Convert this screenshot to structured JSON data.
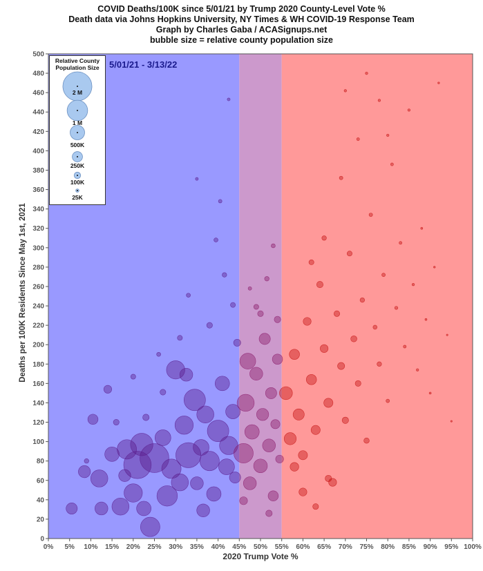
{
  "header": {
    "line1": "COVID Deaths/100K since 5/01/21 by Trump 2020 County-Level Vote %",
    "line2": "Death data via Johns Hopkins University, NY Times & WH COVID-19 Response Team",
    "line3": "Graph by Charles Gaba / ACASignups.net",
    "line4": "bubble size = relative county population size"
  },
  "date_range": "5/01/21 - 3/13/22",
  "legend": {
    "title_line1": "Relative County",
    "title_line2": "Population Size",
    "items": [
      {
        "label": "2 M",
        "population": 2000000
      },
      {
        "label": "1 M",
        "population": 1000000
      },
      {
        "label": "500K",
        "population": 500000
      },
      {
        "label": "250K",
        "population": 250000
      },
      {
        "label": "100K",
        "population": 100000
      },
      {
        "label": "25K",
        "population": 25000
      }
    ]
  },
  "colors": {
    "blue_zone": "#9999ff",
    "purple_zone": "#cc99cc",
    "red_zone": "#ff9999",
    "blue_bubble": "#5a1a8a",
    "purple_bubble": "#8a1a6a",
    "red_bubble": "#c41010",
    "legend_bubble": "#a9c9ef"
  },
  "chart_data": {
    "type": "scatter",
    "title": "COVID Deaths/100K since 5/01/21 by Trump 2020 County-Level Vote %",
    "xlabel": "2020 Trump Vote %",
    "ylabel": "Deaths per 100K Residents Since May 1st, 2021",
    "xlim": [
      0,
      100
    ],
    "ylim": [
      0,
      500
    ],
    "x_ticks": [
      "0%",
      "5%",
      "10%",
      "15%",
      "20%",
      "25%",
      "30%",
      "35%",
      "40%",
      "45%",
      "50%",
      "55%",
      "60%",
      "65%",
      "70%",
      "75%",
      "80%",
      "85%",
      "90%",
      "95%",
      "100%"
    ],
    "y_ticks": [
      0,
      20,
      40,
      60,
      80,
      100,
      120,
      140,
      160,
      180,
      200,
      220,
      240,
      260,
      280,
      300,
      320,
      340,
      360,
      380,
      400,
      420,
      440,
      460,
      480,
      500
    ],
    "grid": false,
    "legend_position": "top-left",
    "bands": [
      {
        "from": 0,
        "to": 45,
        "color": "#9999ff"
      },
      {
        "from": 45,
        "to": 55,
        "color": "#cc99cc"
      },
      {
        "from": 55,
        "to": 100,
        "color": "#ff9999"
      }
    ],
    "series": [
      {
        "color": "#5a1a8a",
        "points": [
          {
            "x": 5.5,
            "y": 31,
            "pop": 300000
          },
          {
            "x": 8.5,
            "y": 69,
            "pop": 350000
          },
          {
            "x": 10.5,
            "y": 123,
            "pop": 250000
          },
          {
            "x": 12,
            "y": 62,
            "pop": 700000
          },
          {
            "x": 12.5,
            "y": 31,
            "pop": 400000
          },
          {
            "x": 14,
            "y": 154,
            "pop": 150000
          },
          {
            "x": 15,
            "y": 87,
            "pop": 500000
          },
          {
            "x": 17,
            "y": 33,
            "pop": 700000
          },
          {
            "x": 18,
            "y": 65,
            "pop": 350000
          },
          {
            "x": 18.5,
            "y": 92,
            "pop": 900000
          },
          {
            "x": 20,
            "y": 47,
            "pop": 800000
          },
          {
            "x": 21,
            "y": 76,
            "pop": 1800000
          },
          {
            "x": 22,
            "y": 97,
            "pop": 1200000
          },
          {
            "x": 22.5,
            "y": 31,
            "pop": 500000
          },
          {
            "x": 24,
            "y": 12,
            "pop": 900000
          },
          {
            "x": 25,
            "y": 83,
            "pop": 2000000
          },
          {
            "x": 27,
            "y": 104,
            "pop": 600000
          },
          {
            "x": 28,
            "y": 44,
            "pop": 1000000
          },
          {
            "x": 29,
            "y": 72,
            "pop": 900000
          },
          {
            "x": 30,
            "y": 174,
            "pop": 800000
          },
          {
            "x": 31,
            "y": 58,
            "pop": 700000
          },
          {
            "x": 32,
            "y": 117,
            "pop": 800000
          },
          {
            "x": 32.5,
            "y": 169,
            "pop": 400000
          },
          {
            "x": 33,
            "y": 86,
            "pop": 1500000
          },
          {
            "x": 34.5,
            "y": 143,
            "pop": 1100000
          },
          {
            "x": 35,
            "y": 57,
            "pop": 400000
          },
          {
            "x": 36,
            "y": 94,
            "pop": 600000
          },
          {
            "x": 36.5,
            "y": 29,
            "pop": 400000
          },
          {
            "x": 37,
            "y": 128,
            "pop": 700000
          },
          {
            "x": 38,
            "y": 80,
            "pop": 900000
          },
          {
            "x": 39,
            "y": 46,
            "pop": 500000
          },
          {
            "x": 40,
            "y": 111,
            "pop": 1100000
          },
          {
            "x": 41,
            "y": 160,
            "pop": 500000
          },
          {
            "x": 42,
            "y": 74,
            "pop": 600000
          },
          {
            "x": 42.5,
            "y": 96,
            "pop": 800000
          },
          {
            "x": 43.5,
            "y": 131,
            "pop": 500000
          },
          {
            "x": 44,
            "y": 63,
            "pop": 300000
          },
          {
            "x": 20,
            "y": 167,
            "pop": 60000
          },
          {
            "x": 27,
            "y": 151,
            "pop": 80000
          },
          {
            "x": 31,
            "y": 207,
            "pop": 60000
          },
          {
            "x": 33,
            "y": 251,
            "pop": 40000
          },
          {
            "x": 35,
            "y": 371,
            "pop": 20000
          },
          {
            "x": 38,
            "y": 220,
            "pop": 80000
          },
          {
            "x": 39.5,
            "y": 308,
            "pop": 40000
          },
          {
            "x": 40.5,
            "y": 348,
            "pop": 30000
          },
          {
            "x": 41.5,
            "y": 272,
            "pop": 50000
          },
          {
            "x": 42.5,
            "y": 453,
            "pop": 20000
          },
          {
            "x": 43.5,
            "y": 241,
            "pop": 60000
          },
          {
            "x": 44.5,
            "y": 202,
            "pop": 120000
          },
          {
            "x": 16,
            "y": 120,
            "pop": 80000
          },
          {
            "x": 9,
            "y": 80,
            "pop": 50000
          },
          {
            "x": 23,
            "y": 125,
            "pop": 100000
          },
          {
            "x": 26,
            "y": 190,
            "pop": 40000
          }
        ]
      },
      {
        "color": "#8a1a6a",
        "points": [
          {
            "x": 46,
            "y": 88,
            "pop": 900000
          },
          {
            "x": 46.5,
            "y": 140,
            "pop": 700000
          },
          {
            "x": 47,
            "y": 183,
            "pop": 600000
          },
          {
            "x": 47.5,
            "y": 57,
            "pop": 400000
          },
          {
            "x": 48,
            "y": 110,
            "pop": 500000
          },
          {
            "x": 49,
            "y": 170,
            "pop": 400000
          },
          {
            "x": 50,
            "y": 75,
            "pop": 450000
          },
          {
            "x": 50.5,
            "y": 128,
            "pop": 350000
          },
          {
            "x": 51,
            "y": 206,
            "pop": 300000
          },
          {
            "x": 52,
            "y": 96,
            "pop": 400000
          },
          {
            "x": 52.5,
            "y": 150,
            "pop": 300000
          },
          {
            "x": 53,
            "y": 44,
            "pop": 250000
          },
          {
            "x": 53.5,
            "y": 118,
            "pop": 200000
          },
          {
            "x": 54,
            "y": 185,
            "pop": 250000
          },
          {
            "x": 54.5,
            "y": 82,
            "pop": 150000
          },
          {
            "x": 49,
            "y": 239,
            "pop": 60000
          },
          {
            "x": 51.5,
            "y": 268,
            "pop": 50000
          },
          {
            "x": 53,
            "y": 302,
            "pop": 40000
          },
          {
            "x": 47.5,
            "y": 258,
            "pop": 30000
          },
          {
            "x": 52,
            "y": 26,
            "pop": 100000
          },
          {
            "x": 46,
            "y": 39,
            "pop": 150000
          },
          {
            "x": 50,
            "y": 232,
            "pop": 80000
          },
          {
            "x": 54,
            "y": 226,
            "pop": 100000
          }
        ]
      },
      {
        "color": "#c41010",
        "points": [
          {
            "x": 56,
            "y": 150,
            "pop": 400000
          },
          {
            "x": 57,
            "y": 103,
            "pop": 350000
          },
          {
            "x": 58,
            "y": 190,
            "pop": 250000
          },
          {
            "x": 59,
            "y": 128,
            "pop": 300000
          },
          {
            "x": 60,
            "y": 86,
            "pop": 200000
          },
          {
            "x": 61,
            "y": 224,
            "pop": 150000
          },
          {
            "x": 62,
            "y": 164,
            "pop": 250000
          },
          {
            "x": 63,
            "y": 112,
            "pop": 200000
          },
          {
            "x": 64,
            "y": 262,
            "pop": 100000
          },
          {
            "x": 65,
            "y": 196,
            "pop": 150000
          },
          {
            "x": 66,
            "y": 140,
            "pop": 200000
          },
          {
            "x": 67,
            "y": 58,
            "pop": 150000
          },
          {
            "x": 68,
            "y": 232,
            "pop": 80000
          },
          {
            "x": 69,
            "y": 178,
            "pop": 120000
          },
          {
            "x": 70,
            "y": 122,
            "pop": 100000
          },
          {
            "x": 71,
            "y": 294,
            "pop": 60000
          },
          {
            "x": 72,
            "y": 206,
            "pop": 90000
          },
          {
            "x": 73,
            "y": 160,
            "pop": 80000
          },
          {
            "x": 74,
            "y": 246,
            "pop": 50000
          },
          {
            "x": 75,
            "y": 101,
            "pop": 70000
          },
          {
            "x": 76,
            "y": 334,
            "pop": 30000
          },
          {
            "x": 77,
            "y": 218,
            "pop": 40000
          },
          {
            "x": 78,
            "y": 180,
            "pop": 50000
          },
          {
            "x": 79,
            "y": 272,
            "pop": 30000
          },
          {
            "x": 80,
            "y": 142,
            "pop": 30000
          },
          {
            "x": 81,
            "y": 386,
            "pop": 20000
          },
          {
            "x": 82,
            "y": 238,
            "pop": 25000
          },
          {
            "x": 83,
            "y": 305,
            "pop": 20000
          },
          {
            "x": 84,
            "y": 198,
            "pop": 20000
          },
          {
            "x": 85,
            "y": 442,
            "pop": 15000
          },
          {
            "x": 86,
            "y": 262,
            "pop": 15000
          },
          {
            "x": 87,
            "y": 174,
            "pop": 15000
          },
          {
            "x": 88,
            "y": 320,
            "pop": 10000
          },
          {
            "x": 89,
            "y": 226,
            "pop": 10000
          },
          {
            "x": 90,
            "y": 150,
            "pop": 10000
          },
          {
            "x": 91,
            "y": 280,
            "pop": 8000
          },
          {
            "x": 92,
            "y": 470,
            "pop": 8000
          },
          {
            "x": 94,
            "y": 210,
            "pop": 6000
          },
          {
            "x": 95,
            "y": 121,
            "pop": 5000
          },
          {
            "x": 60,
            "y": 48,
            "pop": 150000
          },
          {
            "x": 63,
            "y": 33,
            "pop": 80000
          },
          {
            "x": 66,
            "y": 62,
            "pop": 100000
          },
          {
            "x": 58,
            "y": 74,
            "pop": 180000
          },
          {
            "x": 62,
            "y": 285,
            "pop": 60000
          },
          {
            "x": 65,
            "y": 310,
            "pop": 50000
          },
          {
            "x": 69,
            "y": 372,
            "pop": 30000
          },
          {
            "x": 73,
            "y": 412,
            "pop": 20000
          },
          {
            "x": 75,
            "y": 480,
            "pop": 15000
          },
          {
            "x": 70,
            "y": 462,
            "pop": 15000
          },
          {
            "x": 78,
            "y": 452,
            "pop": 15000
          },
          {
            "x": 80,
            "y": 416,
            "pop": 15000
          }
        ]
      }
    ]
  }
}
